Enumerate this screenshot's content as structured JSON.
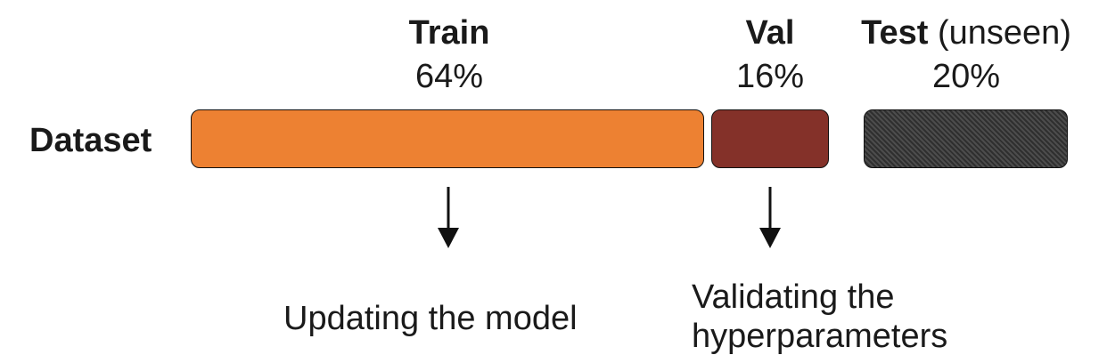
{
  "splits": {
    "train": {
      "name": "Train",
      "percent": "64%",
      "share": 0.64,
      "color": "#ed8132",
      "description": "Updating the model"
    },
    "val": {
      "name": "Val",
      "percent": "16%",
      "share": 0.16,
      "color": "#843129",
      "description_line1": "Validating the",
      "description_line2": "hyperparameters"
    },
    "test": {
      "name": "Test",
      "qualifier": "(unseen)",
      "percent": "20%",
      "share": 0.2,
      "color": "#3a3a3a",
      "pattern": "diagonal-hatch"
    }
  },
  "dataset_label": "Dataset"
}
